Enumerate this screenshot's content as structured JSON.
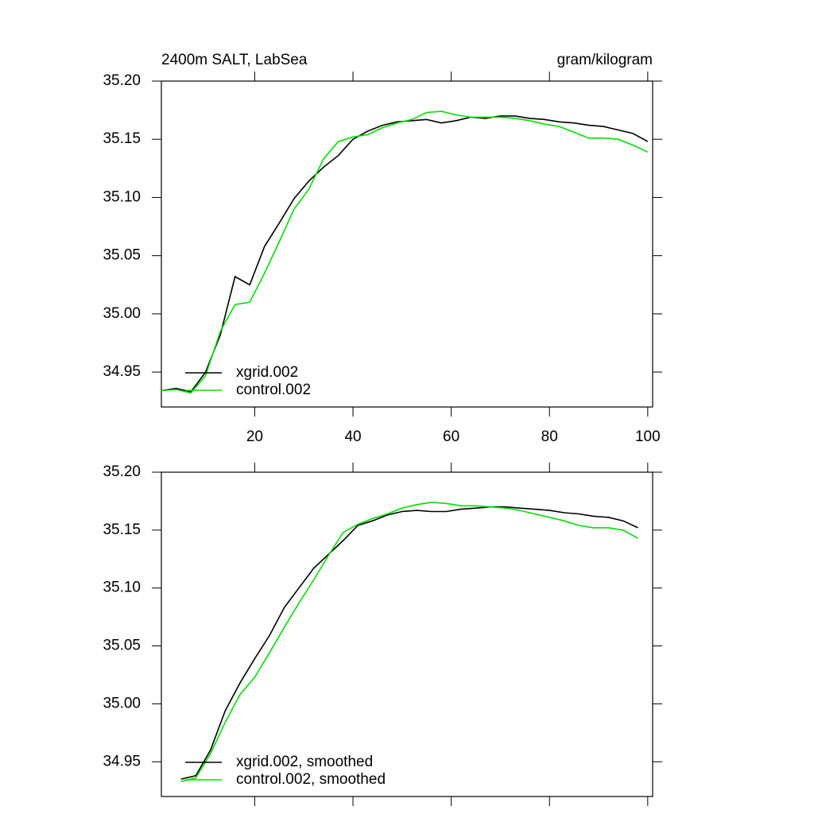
{
  "chart_data": [
    {
      "type": "line",
      "title": "2400m SALT, LabSea",
      "units": "gram/kilogram",
      "x": [
        1,
        4,
        7,
        10,
        13,
        16,
        19,
        22,
        25,
        28,
        31,
        34,
        37,
        40,
        43,
        46,
        49,
        52,
        55,
        58,
        61,
        64,
        67,
        70,
        73,
        76,
        79,
        82,
        85,
        88,
        91,
        94,
        97,
        100
      ],
      "series": [
        {
          "name": "xgrid.002",
          "color": "#000000",
          "values": [
            34.934,
            34.936,
            34.933,
            34.95,
            34.982,
            35.032,
            35.025,
            35.058,
            35.078,
            35.099,
            35.114,
            35.126,
            35.136,
            35.15,
            35.157,
            35.162,
            35.165,
            35.166,
            35.167,
            35.164,
            35.166,
            35.169,
            35.168,
            35.17,
            35.17,
            35.168,
            35.167,
            35.165,
            35.164,
            35.162,
            35.161,
            35.158,
            35.155,
            35.148
          ]
        },
        {
          "name": "control.002",
          "color": "#00e000",
          "values": [
            34.934,
            34.935,
            34.932,
            34.947,
            34.985,
            35.008,
            35.01,
            35.035,
            35.062,
            35.09,
            35.107,
            35.133,
            35.148,
            35.152,
            35.154,
            35.16,
            35.164,
            35.167,
            35.173,
            35.174,
            35.171,
            35.169,
            35.169,
            35.169,
            35.168,
            35.166,
            35.163,
            35.161,
            35.156,
            35.151,
            35.151,
            35.15,
            35.145,
            35.139
          ]
        }
      ],
      "xlim": [
        1,
        101
      ],
      "xticks": [
        20,
        40,
        60,
        80,
        100
      ],
      "xtick_labels": true,
      "ylim": [
        34.92,
        35.2
      ],
      "yticks": [
        {
          "value": 34.95,
          "label": "34.95"
        },
        {
          "value": 35.0,
          "label": "35.00"
        },
        35.05,
        {
          "value": 35.1,
          "label": "35.10"
        },
        35.15,
        {
          "value": 35.2,
          "label": "35.20"
        }
      ],
      "legend": "lower left"
    },
    {
      "type": "line",
      "x": [
        5,
        8,
        11,
        14,
        17,
        20,
        23,
        26,
        29,
        32,
        35,
        38,
        41,
        44,
        47,
        50,
        53,
        56,
        59,
        62,
        65,
        68,
        71,
        74,
        77,
        80,
        83,
        86,
        89,
        92,
        95,
        98
      ],
      "series": [
        {
          "name": "xgrid.002, smoothed",
          "color": "#000000",
          "values": [
            34.935,
            34.938,
            34.96,
            34.994,
            35.018,
            35.039,
            35.059,
            35.083,
            35.1,
            35.117,
            35.129,
            35.141,
            35.154,
            35.158,
            35.163,
            35.166,
            35.167,
            35.166,
            35.166,
            35.168,
            35.169,
            35.17,
            35.17,
            35.169,
            35.168,
            35.167,
            35.165,
            35.164,
            35.162,
            35.161,
            35.158,
            35.152
          ]
        },
        {
          "name": "control.002, smoothed",
          "color": "#00e000",
          "values": [
            34.933,
            34.936,
            34.957,
            34.984,
            35.008,
            35.023,
            35.044,
            35.066,
            35.087,
            35.107,
            35.128,
            35.148,
            35.155,
            35.16,
            35.164,
            35.169,
            35.172,
            35.174,
            35.173,
            35.171,
            35.171,
            35.17,
            35.169,
            35.167,
            35.164,
            35.161,
            35.158,
            35.154,
            35.152,
            35.152,
            35.15,
            35.143
          ]
        }
      ],
      "xlim": [
        1,
        101
      ],
      "xticks": [
        20,
        40,
        60,
        80,
        100
      ],
      "xtick_labels": false,
      "ylim": [
        34.92,
        35.2
      ],
      "yticks": [
        {
          "value": 34.95,
          "label": "34.95"
        },
        {
          "value": 35.0,
          "label": "35.00"
        },
        35.05,
        {
          "value": 35.1,
          "label": "35.10"
        },
        35.15,
        {
          "value": 35.2,
          "label": "35.20"
        }
      ],
      "legend": "lower left"
    }
  ]
}
